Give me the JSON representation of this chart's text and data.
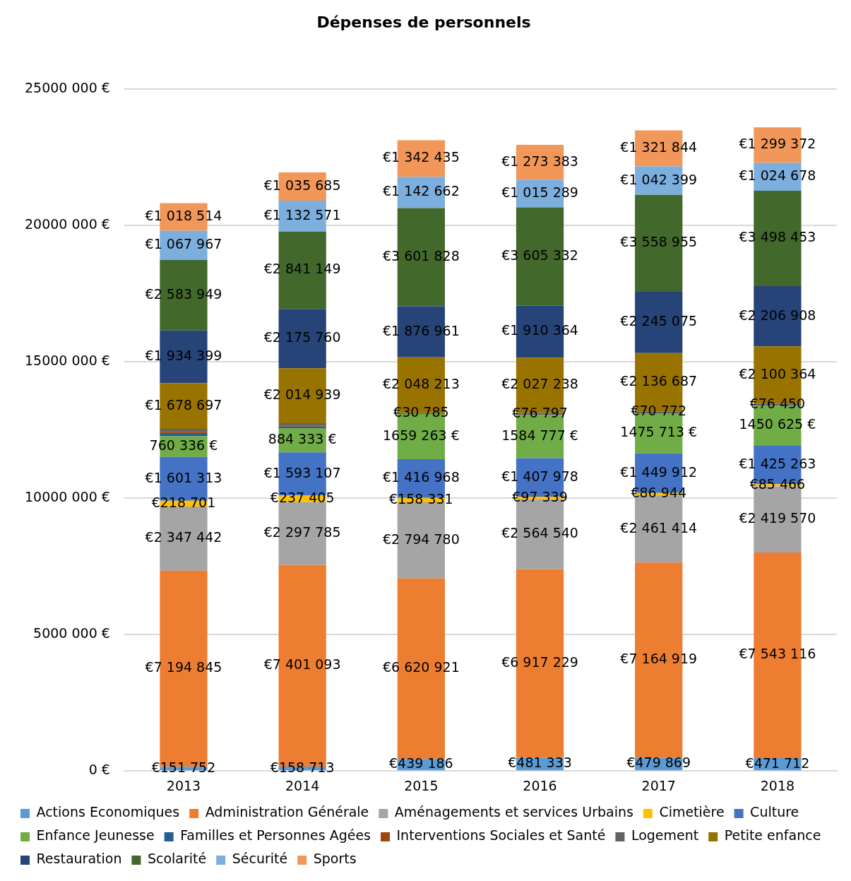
{
  "chart_data": {
    "type": "bar",
    "title": "Dépenses de personnels",
    "stacked": true,
    "grid": "y",
    "legend": "bottom",
    "categories": [
      "2013",
      "2014",
      "2015",
      "2016",
      "2017",
      "2018"
    ],
    "ylim": [
      0,
      25000000
    ],
    "yticks": [
      {
        "value": 0,
        "label": "0 €"
      },
      {
        "value": 5000000,
        "label": "5000 000 €"
      },
      {
        "value": 10000000,
        "label": "10000 000 €"
      },
      {
        "value": 15000000,
        "label": "15000 000 €"
      },
      {
        "value": 20000000,
        "label": "20000 000 €"
      },
      {
        "value": 25000000,
        "label": "25000 000 €"
      }
    ],
    "series": [
      {
        "name": "Actions Economiques",
        "color": "#5b9bd5",
        "values": [
          151752,
          158713,
          439186,
          481333,
          479869,
          471712
        ],
        "value_labels": [
          "€151 752",
          "€158 713",
          "€439 186",
          "€481 333",
          "€479 869",
          "€471 712"
        ]
      },
      {
        "name": "Administration Générale",
        "color": "#ed7d31",
        "values": [
          7194845,
          7401093,
          6620921,
          6917229,
          7164919,
          7543116
        ],
        "value_labels": [
          "€7 194 845",
          "€7 401 093",
          "€6 620 921",
          "€6 917 229",
          "€7 164 919",
          "€7 543 116"
        ]
      },
      {
        "name": "Aménagements et services Urbains",
        "color": "#a5a5a5",
        "values": [
          2347442,
          2297785,
          2794780,
          2564540,
          2461414,
          2419570
        ],
        "value_labels": [
          "€2 347 442",
          "€2 297 785",
          "€2 794 780",
          "€2 564 540",
          "€2 461 414",
          "€2 419 570"
        ]
      },
      {
        "name": "Cimetière",
        "color": "#ffc000",
        "values": [
          218701,
          237405,
          158331,
          97339,
          86944,
          85466
        ],
        "value_labels": [
          "€218 701",
          "€237 405",
          "€158 331",
          "€97 339",
          "€86 944",
          "€85 466"
        ]
      },
      {
        "name": "Culture",
        "color": "#4472c4",
        "values": [
          1601313,
          1593107,
          1416968,
          1407978,
          1449912,
          1425263
        ],
        "value_labels": [
          "€1 601 313",
          "€1 593 107",
          "€1 416 968",
          "€1 407 978",
          "€1 449 912",
          "€1 425 263"
        ]
      },
      {
        "name": "Enfance Jeunesse",
        "color": "#70ad47",
        "values": [
          760336,
          884333,
          1659263,
          1584777,
          1475713,
          1450625
        ],
        "value_labels": [
          "760 336 €",
          "884 333 €",
          "1659 263 €",
          "1584 777 €",
          "1475 713 €",
          "1450 625 €"
        ]
      },
      {
        "name": "Familles et Personnes Agées",
        "color": "#255e91",
        "values": [
          90000,
          60000,
          null,
          null,
          null,
          null
        ]
      },
      {
        "name": "Interventions Sociales et Santé",
        "color": "#9e480e",
        "values": [
          70000,
          40000,
          null,
          null,
          null,
          null
        ]
      },
      {
        "name": "Logement",
        "color": "#636363",
        "values": [
          110000,
          80000,
          30785,
          76797,
          70772,
          76450
        ],
        "value_labels": [
          null,
          null,
          "€30 785",
          "€76 797",
          "€70 772",
          "€76 450"
        ]
      },
      {
        "name": "Petite enfance",
        "color": "#997300",
        "values": [
          1678697,
          2014939,
          2048213,
          2027238,
          2136687,
          2100364
        ],
        "value_labels": [
          "€1 678 697",
          "€2 014 939",
          "€2 048 213",
          "€2 027 238",
          "€2 136 687",
          "€2 100 364"
        ]
      },
      {
        "name": "Restauration",
        "color": "#264478",
        "values": [
          1934399,
          2175760,
          1876961,
          1910364,
          2245075,
          2206908
        ],
        "value_labels": [
          "€1 934 399",
          "€2 175 760",
          "€1 876 961",
          "€1 910 364",
          "€2 245 075",
          "€2 206 908"
        ]
      },
      {
        "name": "Scolarité",
        "color": "#43682b",
        "values": [
          2583949,
          2841149,
          3601828,
          3605332,
          3558955,
          3498453
        ],
        "value_labels": [
          "€2 583 949",
          "€2 841 149",
          "€3 601 828",
          "€3 605 332",
          "€3 558 955",
          "€3 498 453"
        ]
      },
      {
        "name": "Sécurité",
        "color": "#7cafdd",
        "values": [
          1067967,
          1132571,
          1142662,
          1015289,
          1042399,
          1024678
        ],
        "value_labels": [
          "€1 067 967",
          "€1 132 571",
          "€1 142 662",
          "€1 015 289",
          "€1 042 399",
          "€1 024 678"
        ]
      },
      {
        "name": "Sports",
        "color": "#f1975a",
        "values": [
          1018514,
          1035685,
          1342435,
          1273383,
          1321844,
          1299372
        ],
        "value_labels": [
          "€1 018 514",
          "€1 035 685",
          "€1 342 435",
          "€1 273 383",
          "€1 321 844",
          "€1 299 372"
        ]
      }
    ]
  }
}
